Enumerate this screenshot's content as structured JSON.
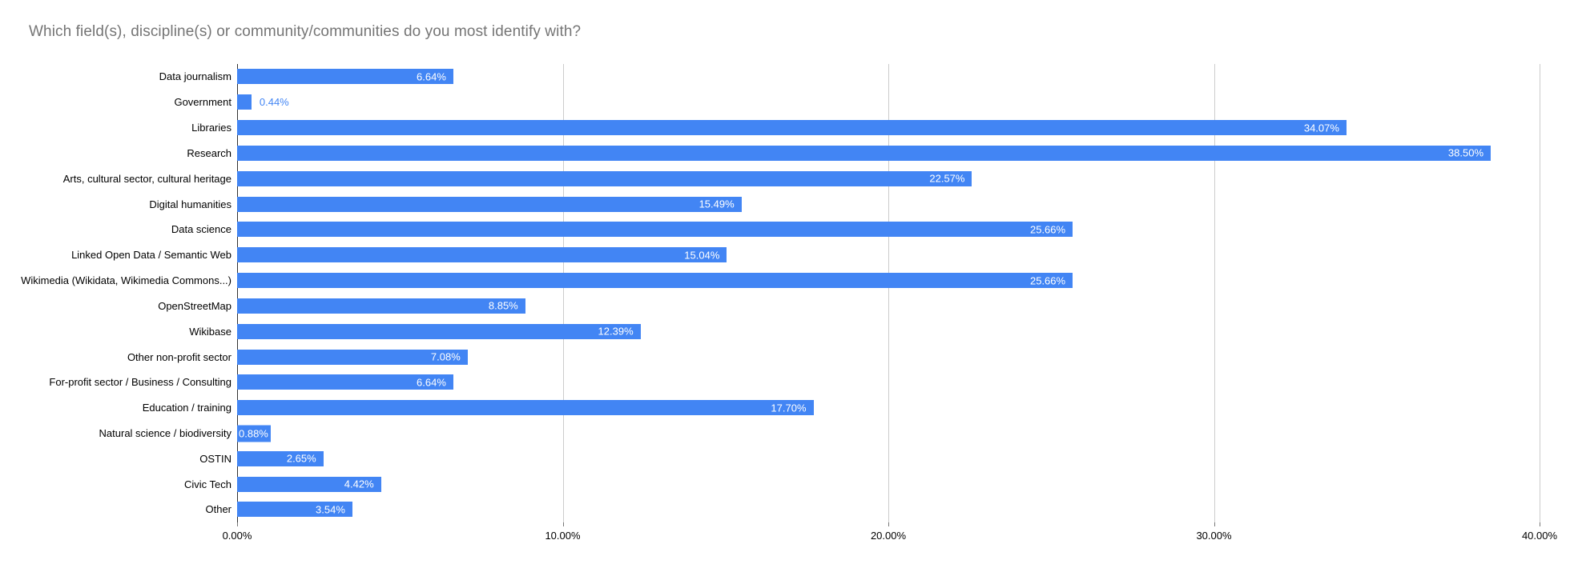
{
  "title": "Which field(s), discipline(s) or community/communities do you most identify with?",
  "colors": {
    "bar": "#4285F4",
    "title_text": "#757575",
    "gridline": "#cccccc",
    "zero_axis_line": "#333333",
    "value_label_inside": "#ffffff",
    "value_label_outside": "#4285F4",
    "category_label": "#000000",
    "axis_tick_label": "#000000",
    "background": "#ffffff"
  },
  "chart_data": {
    "type": "bar",
    "orientation": "horizontal",
    "title": "Which field(s), discipline(s) or community/communities do you most identify with?",
    "xlabel": "",
    "ylabel": "",
    "xlim": [
      0,
      40
    ],
    "grid": true,
    "legend": "none",
    "categories": [
      "Data journalism",
      "Government",
      "Libraries",
      "Research",
      "Arts, cultural sector, cultural heritage",
      "Digital humanities",
      "Data science",
      "Linked Open Data / Semantic Web",
      "Wikimedia (Wikidata, Wikimedia Commons...)",
      "OpenStreetMap",
      "Wikibase",
      "Other non-profit sector",
      "For-profit sector / Business / Consulting",
      "Education / training",
      "Natural science / biodiversity",
      "OSTIN",
      "Civic Tech",
      "Other"
    ],
    "values": [
      6.64,
      0.44,
      34.07,
      38.5,
      22.57,
      15.49,
      25.66,
      15.04,
      25.66,
      8.85,
      12.39,
      7.08,
      6.64,
      17.7,
      0.88,
      2.65,
      4.42,
      3.54
    ],
    "value_labels": [
      "6.64%",
      "0.44%",
      "34.07%",
      "38.50%",
      "22.57%",
      "15.49%",
      "25.66%",
      "15.04%",
      "25.66%",
      "8.85%",
      "12.39%",
      "7.08%",
      "6.64%",
      "17.70%",
      "0.88%",
      "2.65%",
      "4.42%",
      "3.54%"
    ],
    "value_label_positions": [
      "in",
      "out",
      "in",
      "in",
      "in",
      "in",
      "in",
      "in",
      "in",
      "in",
      "in",
      "in",
      "in",
      "in",
      "start",
      "in",
      "in",
      "in"
    ],
    "x_ticks": [
      "0.00%",
      "10.00%",
      "20.00%",
      "30.00%",
      "40.00%"
    ],
    "x_tick_values": [
      0,
      10,
      20,
      30,
      40
    ]
  }
}
